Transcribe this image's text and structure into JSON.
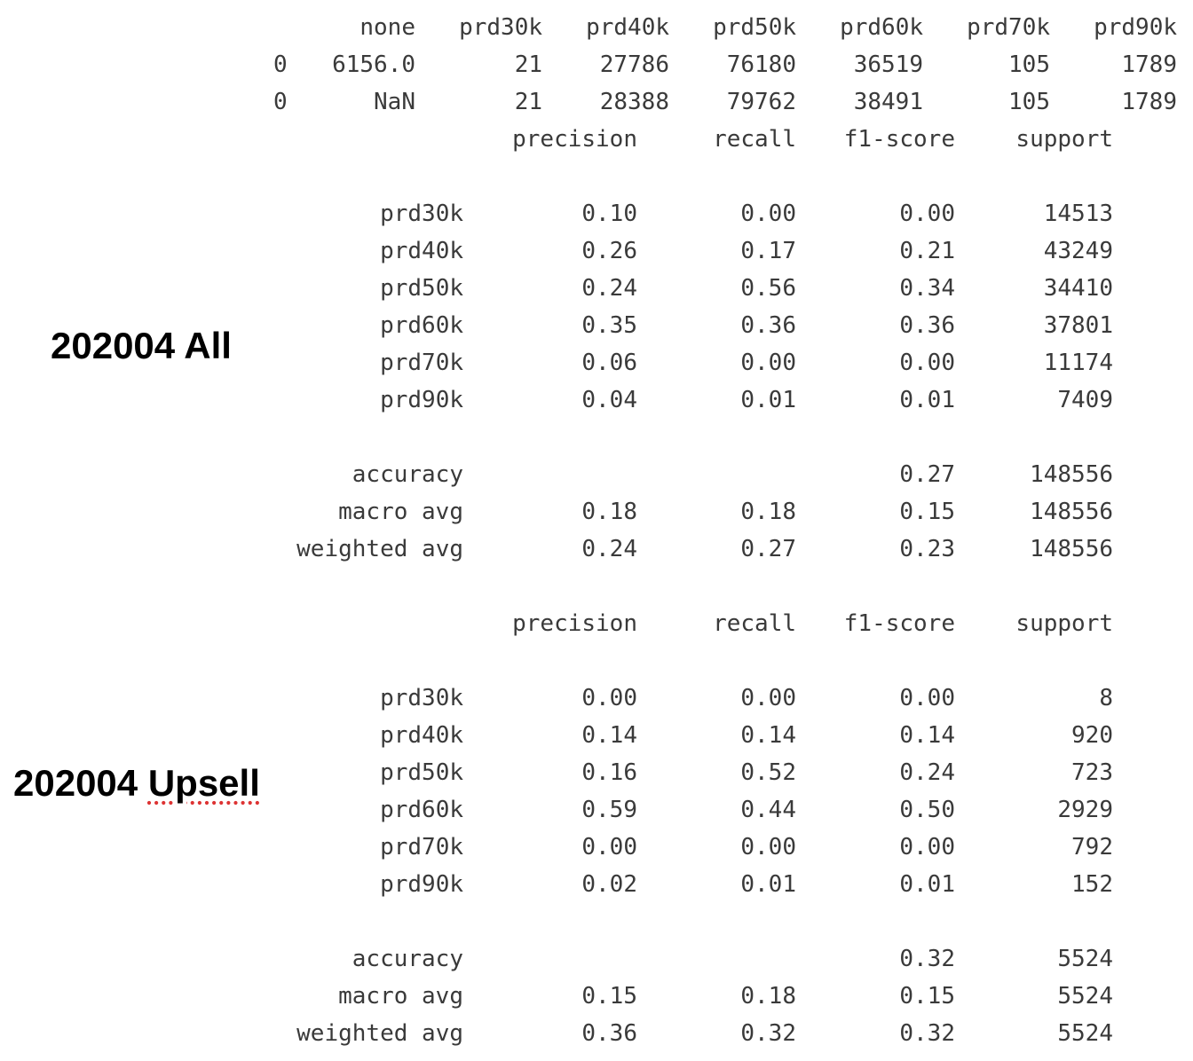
{
  "summary_table": {
    "headers": [
      "none",
      "prd30k",
      "prd40k",
      "prd50k",
      "prd60k",
      "prd70k",
      "prd90k"
    ],
    "rows": [
      {
        "index": "0",
        "values": [
          "6156.0",
          "21",
          "27786",
          "76180",
          "36519",
          "105",
          "1789"
        ]
      },
      {
        "index": "0",
        "values": [
          "NaN",
          "21",
          "28388",
          "79762",
          "38491",
          "105",
          "1789"
        ]
      }
    ]
  },
  "reports": [
    {
      "label_prefix": "202004",
      "label_suffix": "All",
      "headers": [
        "precision",
        "recall",
        "f1-score",
        "support"
      ],
      "classes": [
        {
          "name": "prd30k",
          "precision": "0.10",
          "recall": "0.00",
          "f1": "0.00",
          "support": "14513"
        },
        {
          "name": "prd40k",
          "precision": "0.26",
          "recall": "0.17",
          "f1": "0.21",
          "support": "43249"
        },
        {
          "name": "prd50k",
          "precision": "0.24",
          "recall": "0.56",
          "f1": "0.34",
          "support": "34410"
        },
        {
          "name": "prd60k",
          "precision": "0.35",
          "recall": "0.36",
          "f1": "0.36",
          "support": "37801"
        },
        {
          "name": "prd70k",
          "precision": "0.06",
          "recall": "0.00",
          "f1": "0.00",
          "support": "11174"
        },
        {
          "name": "prd90k",
          "precision": "0.04",
          "recall": "0.01",
          "f1": "0.01",
          "support": "7409"
        }
      ],
      "summary": [
        {
          "name": "accuracy",
          "precision": "",
          "recall": "",
          "f1": "0.27",
          "support": "148556"
        },
        {
          "name": "macro avg",
          "precision": "0.18",
          "recall": "0.18",
          "f1": "0.15",
          "support": "148556"
        },
        {
          "name": "weighted avg",
          "precision": "0.24",
          "recall": "0.27",
          "f1": "0.23",
          "support": "148556"
        }
      ]
    },
    {
      "label_prefix": "202004",
      "label_suffix": "Upsell",
      "headers": [
        "precision",
        "recall",
        "f1-score",
        "support"
      ],
      "classes": [
        {
          "name": "prd30k",
          "precision": "0.00",
          "recall": "0.00",
          "f1": "0.00",
          "support": "8"
        },
        {
          "name": "prd40k",
          "precision": "0.14",
          "recall": "0.14",
          "f1": "0.14",
          "support": "920"
        },
        {
          "name": "prd50k",
          "precision": "0.16",
          "recall": "0.52",
          "f1": "0.24",
          "support": "723"
        },
        {
          "name": "prd60k",
          "precision": "0.59",
          "recall": "0.44",
          "f1": "0.50",
          "support": "2929"
        },
        {
          "name": "prd70k",
          "precision": "0.00",
          "recall": "0.00",
          "f1": "0.00",
          "support": "792"
        },
        {
          "name": "prd90k",
          "precision": "0.02",
          "recall": "0.01",
          "f1": "0.01",
          "support": "152"
        }
      ],
      "summary": [
        {
          "name": "accuracy",
          "precision": "",
          "recall": "",
          "f1": "0.32",
          "support": "5524"
        },
        {
          "name": "macro avg",
          "precision": "0.15",
          "recall": "0.18",
          "f1": "0.15",
          "support": "5524"
        },
        {
          "name": "weighted avg",
          "precision": "0.36",
          "recall": "0.32",
          "f1": "0.32",
          "support": "5524"
        }
      ]
    }
  ]
}
